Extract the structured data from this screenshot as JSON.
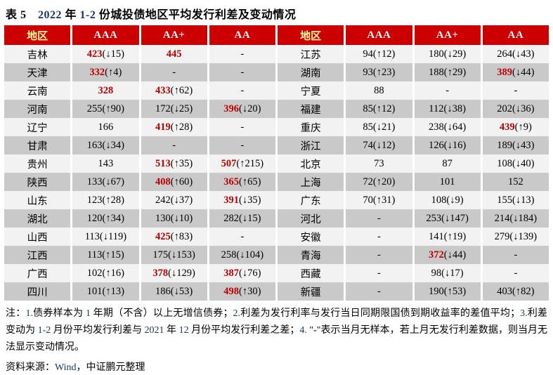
{
  "page": {
    "title_segments": [
      {
        "t": "表 5",
        "s": "b"
      },
      {
        "t": "　",
        "s": "b"
      },
      {
        "t": "2022",
        "s": "n"
      },
      {
        "t": " 年 ",
        "s": "b"
      },
      {
        "t": "1-2",
        "s": "n"
      },
      {
        "t": " 份城投债地区平均发行利差及变动情况",
        "s": "b"
      }
    ]
  },
  "colors": {
    "header_bg": "#CC0000",
    "accent_red": "#C00000",
    "navy_number": "#17375E",
    "stripe_light": "#F2F2F2",
    "stripe_dark": "#C9C9C9",
    "header_region_text": "#FFFF9D",
    "header_rating_text": "#FFFFFF"
  },
  "table": {
    "headers": [
      "地区",
      "AAA",
      "AA+",
      "AA",
      "地区",
      "AAA",
      "AA+",
      "AA"
    ],
    "rows": [
      {
        "l": [
          "吉林",
          [
            "423",
            "(↓15)",
            1
          ],
          [
            "445",
            "",
            1
          ],
          [
            "-",
            "",
            0
          ]
        ],
        "r": [
          "江苏",
          [
            "94",
            "(↑12)",
            0
          ],
          [
            "180",
            "(↓29)",
            0
          ],
          [
            "264",
            "(↓43)",
            0
          ]
        ]
      },
      {
        "l": [
          "天津",
          [
            "332",
            "(↑4)",
            1
          ],
          [
            "-",
            "",
            0
          ],
          [
            "-",
            "",
            0
          ]
        ],
        "r": [
          "湖南",
          [
            "93",
            "(↑23)",
            0
          ],
          [
            "188",
            "(↑29)",
            0
          ],
          [
            "389",
            "(↓44)",
            1
          ]
        ]
      },
      {
        "l": [
          "云南",
          [
            "328",
            "",
            1
          ],
          [
            "433",
            "(↑62)",
            1
          ],
          [
            "-",
            "",
            0
          ]
        ],
        "r": [
          "宁夏",
          [
            "88",
            "",
            0
          ],
          [
            "-",
            "",
            0
          ],
          [
            "-",
            "",
            0
          ]
        ]
      },
      {
        "l": [
          "河南",
          [
            "255",
            "(↑90)",
            0
          ],
          [
            "172",
            "(↓25)",
            0
          ],
          [
            "396",
            "(↓20)",
            1
          ]
        ],
        "r": [
          "福建",
          [
            "85",
            "(↑12)",
            0
          ],
          [
            "112",
            "(↓38)",
            0
          ],
          [
            "202",
            "(↓36)",
            0
          ]
        ]
      },
      {
        "l": [
          "辽宁",
          [
            "166",
            "",
            0
          ],
          [
            "419",
            "(↑28)",
            1
          ],
          [
            "-",
            "",
            0
          ]
        ],
        "r": [
          "重庆",
          [
            "85",
            "(↓21)",
            0
          ],
          [
            "238",
            "(↓64)",
            0
          ],
          [
            "439",
            "(↑9)",
            1
          ]
        ]
      },
      {
        "l": [
          "甘肃",
          [
            "163",
            "(↓34)",
            0
          ],
          [
            "-",
            "",
            0
          ],
          [
            "-",
            "",
            0
          ]
        ],
        "r": [
          "浙江",
          [
            "74",
            "(↓12)",
            0
          ],
          [
            "126",
            "(↓16)",
            0
          ],
          [
            "189",
            "(↓43)",
            0
          ]
        ]
      },
      {
        "l": [
          "贵州",
          [
            "143",
            "",
            0
          ],
          [
            "513",
            "(↑35)",
            1
          ],
          [
            "507",
            "(↑215)",
            1
          ]
        ],
        "r": [
          "北京",
          [
            "73",
            "",
            0
          ],
          [
            "87",
            "",
            0
          ],
          [
            "108",
            "(↓40)",
            0
          ]
        ]
      },
      {
        "l": [
          "陕西",
          [
            "133",
            "(↓67)",
            0
          ],
          [
            "408",
            "(↑60)",
            1
          ],
          [
            "365",
            "(↑65)",
            1
          ]
        ],
        "r": [
          "上海",
          [
            "72",
            "(↑20)",
            0
          ],
          [
            "101",
            "",
            0
          ],
          [
            "152",
            "",
            0
          ]
        ]
      },
      {
        "l": [
          "山东",
          [
            "123",
            "(↑28)",
            0
          ],
          [
            "242",
            "(↓37)",
            0
          ],
          [
            "391",
            "(↓35)",
            1
          ]
        ],
        "r": [
          "广东",
          [
            "70",
            "(↑31)",
            0
          ],
          [
            "108",
            "(↓9)",
            0
          ],
          [
            "155",
            "(↓13)",
            0
          ]
        ]
      },
      {
        "l": [
          "湖北",
          [
            "120",
            "(↑34)",
            0
          ],
          [
            "130",
            "(↓10)",
            0
          ],
          [
            "282",
            "(↓15)",
            0
          ]
        ],
        "r": [
          "河北",
          [
            "-",
            "",
            0
          ],
          [
            "253",
            "(↓147)",
            0
          ],
          [
            "214",
            "(↓184)",
            0
          ]
        ]
      },
      {
        "l": [
          "山西",
          [
            "113",
            "(↓119)",
            0
          ],
          [
            "425",
            "(↑83)",
            1
          ],
          [
            "-",
            "",
            0
          ]
        ],
        "r": [
          "安徽",
          [
            "-",
            "",
            0
          ],
          [
            "141",
            "(↑19)",
            0
          ],
          [
            "279",
            "(↓139)",
            0
          ]
        ]
      },
      {
        "l": [
          "江西",
          [
            "113",
            "(↑15)",
            0
          ],
          [
            "175",
            "(↓153)",
            0
          ],
          [
            "258",
            "(↓104)",
            0
          ]
        ],
        "r": [
          "青海",
          [
            "-",
            "",
            0
          ],
          [
            "372",
            "(↓44)",
            1
          ],
          [
            "-",
            "",
            0
          ]
        ]
      },
      {
        "l": [
          "广西",
          [
            "102",
            "(↑16)",
            0
          ],
          [
            "378",
            "(↓129)",
            1
          ],
          [
            "387",
            "(↓76)",
            1
          ]
        ],
        "r": [
          "西藏",
          [
            "-",
            "",
            0
          ],
          [
            "98",
            "(↓17)",
            0
          ],
          [
            "-",
            "",
            0
          ]
        ]
      },
      {
        "l": [
          "四川",
          [
            "101",
            "(↑13)",
            0
          ],
          [
            "186",
            "(↓53)",
            0
          ],
          [
            "498",
            "(↑30)",
            1
          ]
        ],
        "r": [
          "新疆",
          [
            "-",
            "",
            0
          ],
          [
            "190",
            "(↑53)",
            0
          ],
          [
            "403",
            "(↑82)",
            0
          ]
        ]
      }
    ]
  },
  "notes": {
    "segments": [
      {
        "t": "注：",
        "s": "b"
      },
      {
        "t": "1.",
        "s": "n"
      },
      {
        "t": "债券样本为 ",
        "s": "b"
      },
      {
        "t": "1",
        "s": "n"
      },
      {
        "t": " 年期（不含）以上无增信债券；",
        "s": "b"
      },
      {
        "t": "2.",
        "s": "n"
      },
      {
        "t": "利差为发行利率与发行当日同期限国债到期收益率的差值平均；",
        "s": "b"
      },
      {
        "t": "3.",
        "s": "n"
      },
      {
        "t": "利差变动为 ",
        "s": "b"
      },
      {
        "t": "1-2",
        "s": "n"
      },
      {
        "t": " 月份平均发行利差与 ",
        "s": "b"
      },
      {
        "t": "2021",
        "s": "n"
      },
      {
        "t": " 年 ",
        "s": "b"
      },
      {
        "t": "12",
        "s": "n"
      },
      {
        "t": " 月份平均发行利差之差；",
        "s": "b"
      },
      {
        "t": "4. ",
        "s": "n"
      },
      {
        "t": "\"-\"表示当月无样本，若上月无发行利差数据，则当月无法显示变动情况。",
        "s": "b"
      }
    ]
  },
  "source": {
    "segments": [
      {
        "t": "资料来源：",
        "s": "b"
      },
      {
        "t": "Wind",
        "s": "n"
      },
      {
        "t": "，中证鹏元整理",
        "s": "b"
      }
    ]
  }
}
